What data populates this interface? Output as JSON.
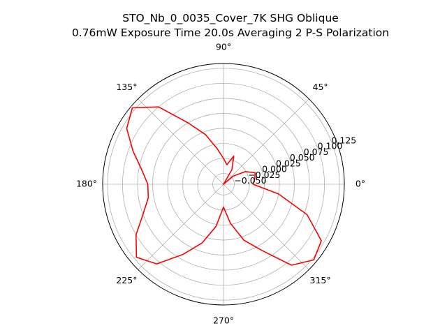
{
  "chart_data": {
    "type": "polar-line",
    "title": "STO_Nb_0_0035_Cover_7K SHG Oblique",
    "subtitle": "0.76mW Exposure Time 20.0s Averaging 2 P-S  Polarization",
    "theta_unit": "degrees",
    "theta_ticks": [
      "0°",
      "45°",
      "90°",
      "135°",
      "180°",
      "225°",
      "270°",
      "315°"
    ],
    "r_ticks": [
      "−0.050",
      "−0.025",
      "0.000",
      "0.025",
      "0.050",
      "0.075",
      "0.100",
      "0.125"
    ],
    "rlim": [
      -0.068,
      0.133
    ],
    "grid": true,
    "legend": "none",
    "series": [
      {
        "color": "#ff0000",
        "theta": [
          0,
          10,
          20,
          30,
          40,
          50,
          60,
          70,
          80,
          90,
          100,
          110,
          120,
          130,
          140,
          150,
          160,
          170,
          180,
          190,
          200,
          210,
          220,
          230,
          240,
          250,
          260,
          270,
          280,
          290,
          300,
          310,
          320,
          330,
          340,
          350,
          360
        ],
        "r": [
          -0.019,
          -0.015,
          -0.012,
          -0.026,
          -0.047,
          -0.068,
          -0.04,
          -0.018,
          -0.035,
          -0.025,
          -0.008,
          0.02,
          0.05,
          0.1,
          0.13,
          0.118,
          0.092,
          0.07,
          0.058,
          0.059,
          0.074,
          0.1,
          0.121,
          0.105,
          0.067,
          0.036,
          0.003,
          -0.03,
          -0.002,
          0.031,
          0.059,
          0.108,
          0.128,
          0.12,
          0.08,
          0.025,
          -0.019
        ]
      }
    ]
  }
}
